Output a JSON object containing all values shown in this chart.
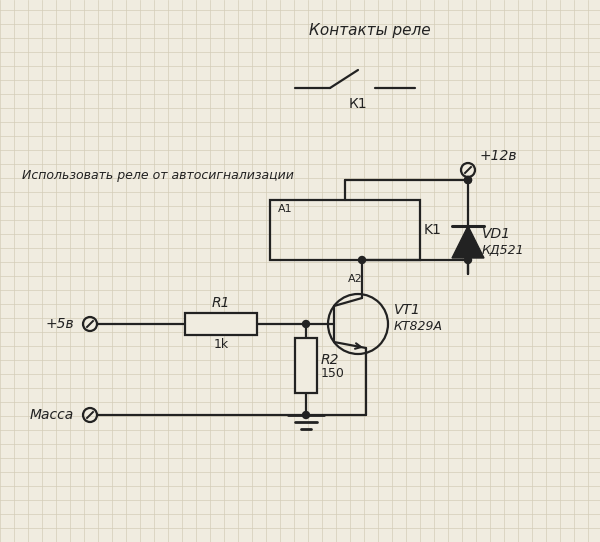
{
  "bg_color": "#f0ece0",
  "grid_color": "#d4cdb8",
  "line_color": "#222222",
  "title_kontakty": "Контакты реле",
  "label_k1_switch": "К1",
  "label_12v": "+12в",
  "label_use_relay": "Использовать реле от автосигнализации",
  "label_a1": "A1",
  "label_a2": "A2",
  "label_k1_relay": "K1",
  "label_vd1": "VD1",
  "label_kd521": "КД521",
  "label_vt1": "VT1",
  "label_kt829a": "КТ829А",
  "label_r1": "R1",
  "label_1k": "1k",
  "label_r2": "R2",
  "label_150": "150",
  "label_5v": "+5в",
  "label_massa": "Масса",
  "figw": 6.0,
  "figh": 5.42,
  "dpi": 100
}
